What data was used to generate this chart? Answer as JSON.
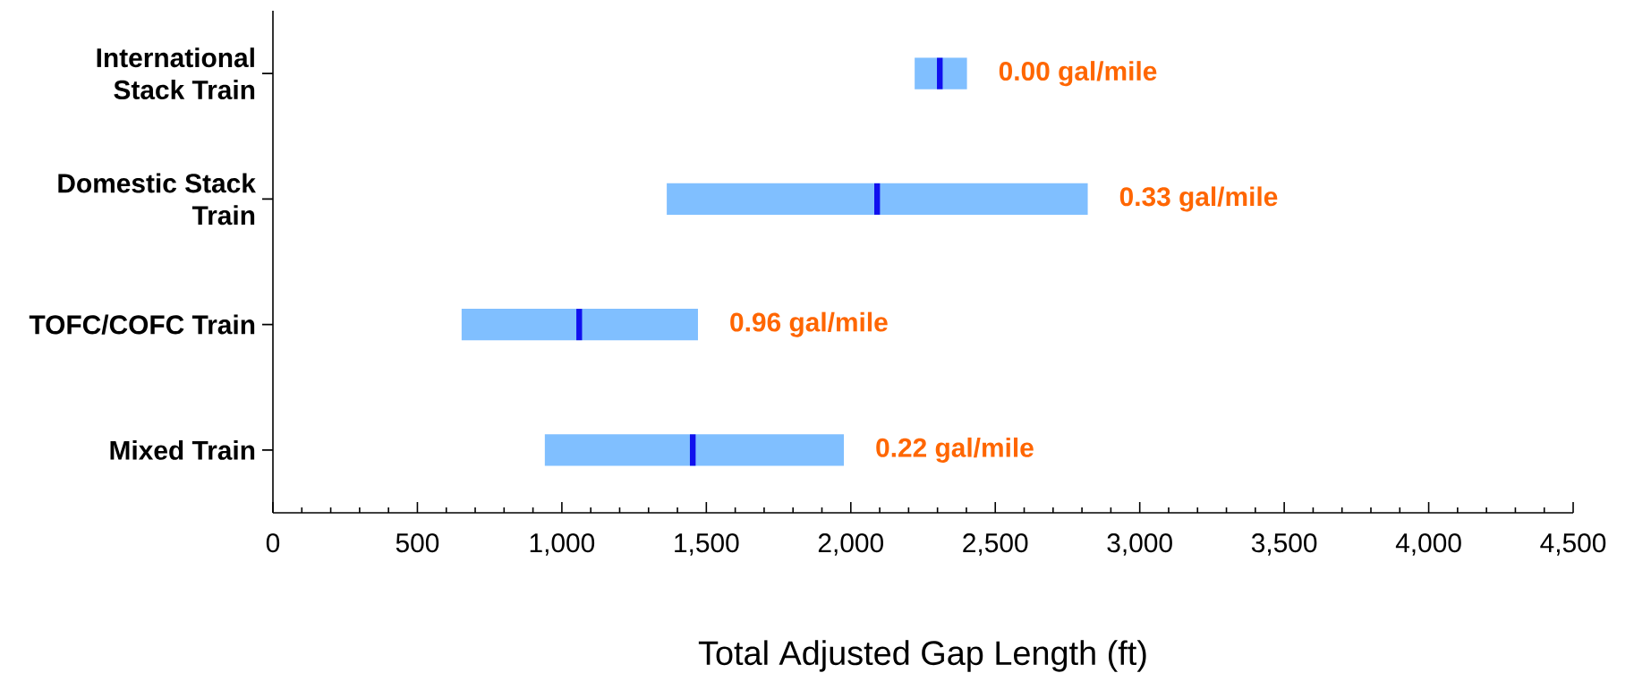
{
  "chart_data": {
    "type": "box",
    "orientation": "horizontal",
    "xlabel": "Total Adjusted Gap Length (ft)",
    "categories": [
      "International Stack Train",
      "Domestic Stack Train",
      "TOFC/COFC Train",
      "Mixed Train"
    ],
    "color": "#80bfff",
    "boxes": [
      {
        "low": 2221,
        "q1": 2221,
        "median": 2308,
        "q3": 2402,
        "high": 2402
      },
      {
        "low": 1363,
        "q1": 1363,
        "median": 2091,
        "q3": 2820,
        "high": 2820
      },
      {
        "low": 653,
        "q1": 653,
        "median": 1060,
        "q3": 1471,
        "high": 1471
      },
      {
        "low": 941,
        "q1": 941,
        "median": 1453,
        "q3": 1976,
        "high": 1976
      }
    ],
    "xlim": [
      0,
      4500
    ],
    "xticks": [
      0,
      500,
      {
        "value": 1000,
        "label": "1,000"
      },
      {
        "value": 1500,
        "label": "1,500"
      },
      {
        "value": 2000,
        "label": "2,000"
      },
      {
        "value": 2500,
        "label": "2,500"
      },
      {
        "value": 3000,
        "label": "3,000"
      },
      {
        "value": 3500,
        "label": "3,500"
      },
      {
        "value": 4000,
        "label": "4,000"
      },
      {
        "value": 4500,
        "label": "4,500"
      }
    ],
    "annotations": [
      "0.00 gal/mile",
      "0.33 gal/mile",
      "0.96 gal/mile",
      "0.22 gal/mile"
    ]
  }
}
